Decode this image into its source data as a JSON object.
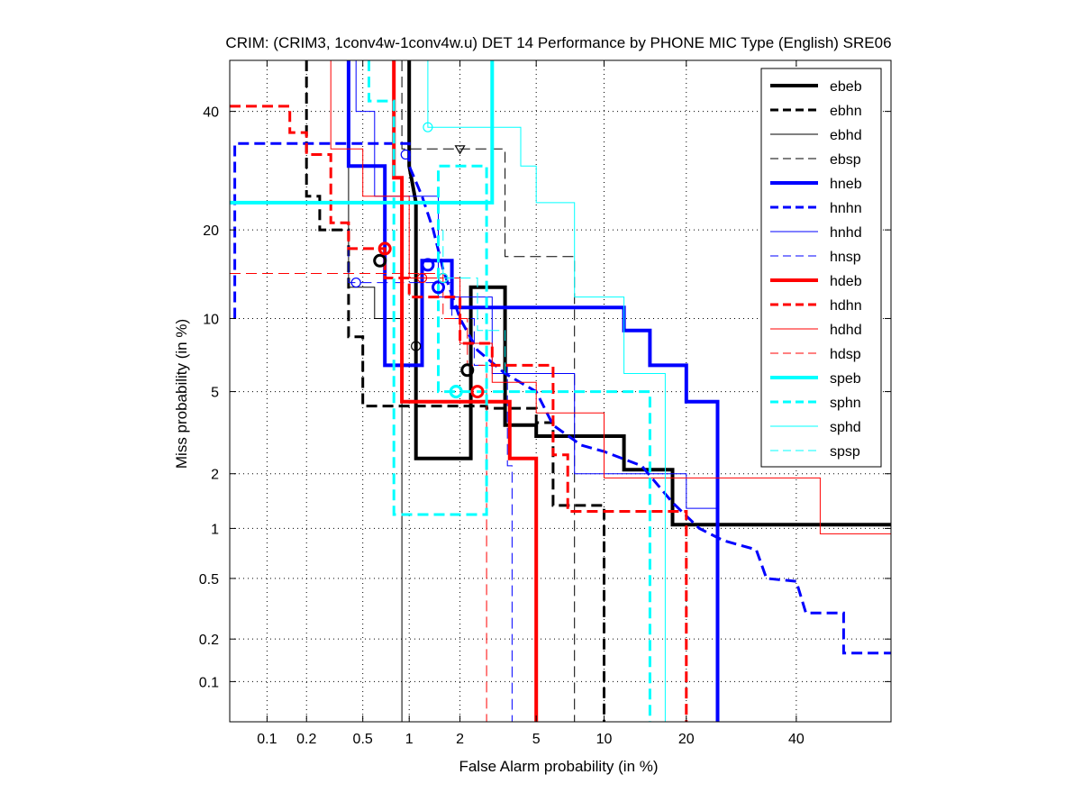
{
  "chart_data": {
    "type": "line",
    "title": "CRIM: (CRIM3, 1conv4w-1conv4w.u) DET 14 Performance by PHONE MIC Type (English) SRE06",
    "xlabel": "False Alarm probability (in %)",
    "ylabel": "Miss probability (in %)",
    "x_scale": "normal-deviate",
    "y_scale": "normal-deviate",
    "xlim": [
      0.05,
      60
    ],
    "ylim": [
      0.05,
      50
    ],
    "x_ticks": [
      0.1,
      0.2,
      0.5,
      1,
      2,
      5,
      10,
      20,
      40
    ],
    "x_tick_labels": [
      "0.1",
      "0.2",
      "0.5",
      "1",
      "2",
      "5",
      "10",
      "20",
      "40"
    ],
    "y_ticks": [
      0.1,
      0.2,
      0.5,
      1,
      2,
      5,
      10,
      20,
      40
    ],
    "y_tick_labels": [
      "0.1",
      "0.2",
      "0.5",
      "1",
      "2",
      "5",
      "10",
      "20",
      "40"
    ],
    "grid": true,
    "legend_position": "top-right",
    "colors": {
      "black": "#000000",
      "blue": "#0000ff",
      "red": "#ff0000",
      "cyan": "#00ffff"
    },
    "series": [
      {
        "name": "ebeb",
        "color": "#000000",
        "width": 4,
        "dash": "solid",
        "marker": "circle",
        "marker_point": [
          2.2,
          6.2
        ],
        "points": [
          [
            1.0,
            50
          ],
          [
            1.0,
            30
          ],
          [
            1.1,
            24
          ],
          [
            1.1,
            2.4
          ],
          [
            2.3,
            2.4
          ],
          [
            2.3,
            13
          ],
          [
            3.5,
            13
          ],
          [
            3.5,
            3.5
          ],
          [
            5,
            3.5
          ],
          [
            5,
            3.1
          ],
          [
            12,
            3.1
          ],
          [
            12,
            2.1
          ],
          [
            18,
            2.1
          ],
          [
            18,
            1.05
          ],
          [
            60,
            1.05
          ]
        ]
      },
      {
        "name": "ebhn",
        "color": "#000000",
        "width": 3,
        "dash": "dash",
        "marker": "circle",
        "marker_point": [
          0.65,
          16
        ],
        "points": [
          [
            0.2,
            50
          ],
          [
            0.2,
            25
          ],
          [
            0.25,
            25
          ],
          [
            0.25,
            20
          ],
          [
            0.4,
            20
          ],
          [
            0.4,
            8.5
          ],
          [
            0.5,
            8.5
          ],
          [
            0.5,
            4.3
          ],
          [
            2.8,
            4.3
          ],
          [
            2.8,
            4.2
          ],
          [
            5,
            4.2
          ],
          [
            5,
            3.6
          ],
          [
            6,
            3.6
          ],
          [
            6,
            1.35
          ],
          [
            10,
            1.35
          ],
          [
            10,
            0.05
          ]
        ]
      },
      {
        "name": "ebhd",
        "color": "#000000",
        "width": 1,
        "dash": "solid",
        "marker": "circle",
        "marker_point": [
          1.1,
          7.8
        ],
        "points": [
          [
            0.4,
            50
          ],
          [
            0.4,
            13
          ],
          [
            0.6,
            13
          ],
          [
            0.6,
            10
          ],
          [
            0.9,
            10
          ],
          [
            0.9,
            0.05
          ]
        ]
      },
      {
        "name": "ebsp",
        "color": "#000000",
        "width": 1,
        "dash": "dash",
        "marker": "triangle",
        "marker_point": [
          2.0,
          33
        ],
        "points": [
          [
            0.9,
            50
          ],
          [
            0.9,
            33
          ],
          [
            3.5,
            33
          ],
          [
            3.5,
            16.5
          ],
          [
            7.5,
            16.5
          ],
          [
            7.5,
            0.05
          ]
        ]
      },
      {
        "name": "hneb",
        "color": "#0000ff",
        "width": 4,
        "dash": "solid",
        "marker": "circle",
        "marker_point": [
          1.3,
          15.5
        ],
        "points": [
          [
            0.4,
            50
          ],
          [
            0.4,
            30
          ],
          [
            0.7,
            30
          ],
          [
            0.7,
            6.5
          ],
          [
            1.2,
            6.5
          ],
          [
            1.2,
            16
          ],
          [
            1.8,
            16
          ],
          [
            1.8,
            11
          ],
          [
            12,
            11
          ],
          [
            12,
            9
          ],
          [
            15,
            9
          ],
          [
            15,
            6.5
          ],
          [
            20,
            6.5
          ],
          [
            20,
            4.5
          ],
          [
            25,
            4.5
          ],
          [
            25,
            0.05
          ]
        ]
      },
      {
        "name": "hnhn",
        "color": "#0000ff",
        "width": 3,
        "dash": "dash",
        "marker": "circle",
        "marker_point": [
          1.5,
          13
        ],
        "points": [
          [
            0.055,
            10
          ],
          [
            0.055,
            34
          ],
          [
            1.0,
            34
          ],
          [
            1.0,
            30
          ],
          [
            1.2,
            25
          ],
          [
            1.4,
            20
          ],
          [
            1.6,
            15
          ],
          [
            2.0,
            10
          ],
          [
            2.5,
            7.5
          ],
          [
            3.5,
            6
          ],
          [
            5,
            5
          ],
          [
            6,
            3.5
          ],
          [
            8,
            2.8
          ],
          [
            10,
            2.6
          ],
          [
            14,
            2.2
          ],
          [
            18,
            1.4
          ],
          [
            22,
            1.0
          ],
          [
            26,
            0.85
          ],
          [
            32,
            0.75
          ],
          [
            34,
            0.5
          ],
          [
            40,
            0.48
          ],
          [
            42,
            0.3
          ],
          [
            50,
            0.3
          ],
          [
            50,
            0.16
          ],
          [
            60,
            0.16
          ]
        ]
      },
      {
        "name": "hnhd",
        "color": "#0000ff",
        "width": 1,
        "dash": "solid",
        "marker": "circle",
        "marker_point": [
          0.95,
          32
        ],
        "points": [
          [
            0.45,
            50
          ],
          [
            0.45,
            40
          ],
          [
            0.6,
            40
          ],
          [
            0.6,
            25
          ],
          [
            1.5,
            25
          ],
          [
            1.5,
            12
          ],
          [
            3.0,
            12
          ],
          [
            3.0,
            6
          ],
          [
            7.5,
            6
          ],
          [
            7.5,
            2.0
          ],
          [
            20,
            2.0
          ],
          [
            20,
            1.3
          ],
          [
            25,
            1.3
          ]
        ]
      },
      {
        "name": "hnsp",
        "color": "#0000ff",
        "width": 1,
        "dash": "dash",
        "marker": "circle",
        "marker_point": [
          0.45,
          13.5
        ],
        "points": [
          [
            0.4,
            20
          ],
          [
            0.4,
            13.5
          ],
          [
            1.8,
            13.5
          ],
          [
            1.8,
            10
          ],
          [
            2.4,
            10
          ],
          [
            2.4,
            6.5
          ],
          [
            3.6,
            6.5
          ],
          [
            3.6,
            2.2
          ],
          [
            3.8,
            2.2
          ],
          [
            3.8,
            0.05
          ]
        ]
      },
      {
        "name": "hdeb",
        "color": "#ff0000",
        "width": 4,
        "dash": "solid",
        "marker": "circle",
        "marker_point": [
          2.5,
          5.0
        ],
        "points": [
          [
            0.8,
            50
          ],
          [
            0.8,
            28
          ],
          [
            0.9,
            28
          ],
          [
            0.9,
            4.5
          ],
          [
            3.7,
            4.5
          ],
          [
            3.7,
            2.4
          ],
          [
            5,
            2.4
          ],
          [
            5,
            0.05
          ]
        ]
      },
      {
        "name": "hdhn",
        "color": "#ff0000",
        "width": 3,
        "dash": "dash",
        "marker": "circle",
        "marker_point": [
          0.7,
          17.5
        ],
        "points": [
          [
            0.05,
            41
          ],
          [
            0.15,
            41
          ],
          [
            0.15,
            36
          ],
          [
            0.2,
            36
          ],
          [
            0.2,
            32
          ],
          [
            0.3,
            32
          ],
          [
            0.3,
            21
          ],
          [
            0.4,
            21
          ],
          [
            0.4,
            17.5
          ],
          [
            0.7,
            17.5
          ],
          [
            0.7,
            14
          ],
          [
            1.0,
            14
          ],
          [
            1.0,
            12
          ],
          [
            2.0,
            12
          ],
          [
            2.0,
            8
          ],
          [
            3.0,
            8
          ],
          [
            3.0,
            6.5
          ],
          [
            6,
            6.5
          ],
          [
            6,
            2.5
          ],
          [
            7,
            2.5
          ],
          [
            7,
            1.25
          ],
          [
            20,
            1.25
          ],
          [
            20,
            0.05
          ]
        ]
      },
      {
        "name": "hdhd",
        "color": "#ff0000",
        "width": 1,
        "dash": "solid",
        "marker": "circle",
        "marker_point": [
          1.2,
          14
        ],
        "points": [
          [
            0.3,
            50
          ],
          [
            0.3,
            33
          ],
          [
            0.5,
            33
          ],
          [
            0.5,
            25
          ],
          [
            1.0,
            25
          ],
          [
            1.0,
            14
          ],
          [
            2.0,
            14
          ],
          [
            2.0,
            8
          ],
          [
            3.0,
            8
          ],
          [
            3.0,
            5.5
          ],
          [
            5,
            5.5
          ],
          [
            5,
            4
          ],
          [
            10,
            4
          ],
          [
            10,
            1.9
          ],
          [
            45,
            1.9
          ],
          [
            45,
            0.93
          ],
          [
            60,
            0.93
          ]
        ]
      },
      {
        "name": "hdsp",
        "color": "#ff0000",
        "width": 1,
        "dash": "dash",
        "marker": "circle",
        "marker_point": [
          1.6,
          14
        ],
        "points": [
          [
            0.05,
            14.5
          ],
          [
            1.6,
            14.5
          ],
          [
            1.6,
            10
          ],
          [
            2.2,
            10
          ],
          [
            2.2,
            6.5
          ],
          [
            2.8,
            6.5
          ],
          [
            2.8,
            0.05
          ]
        ]
      },
      {
        "name": "speb",
        "color": "#00ffff",
        "width": 4,
        "dash": "solid",
        "marker": "circle",
        "marker_point": [
          1.9,
          5.0
        ],
        "points": [
          [
            0.05,
            24
          ],
          [
            3.0,
            24
          ],
          [
            3.0,
            50
          ]
        ]
      },
      {
        "name": "sphn",
        "color": "#00ffff",
        "width": 3,
        "dash": "dash",
        "marker": "circle",
        "marker_point": [
          1.9,
          5.0
        ],
        "points": [
          [
            0.55,
            50
          ],
          [
            0.55,
            42
          ],
          [
            0.8,
            42
          ],
          [
            0.8,
            1.2
          ],
          [
            2.8,
            1.2
          ],
          [
            2.8,
            30
          ],
          [
            1.5,
            30
          ],
          [
            1.5,
            5.0
          ],
          [
            15,
            5.0
          ],
          [
            15,
            0.05
          ]
        ]
      },
      {
        "name": "sphd",
        "color": "#00ffff",
        "width": 1,
        "dash": "solid",
        "marker": "circle",
        "marker_point": [
          1.3,
          37
        ],
        "points": [
          [
            1.3,
            50
          ],
          [
            1.3,
            37
          ],
          [
            4.2,
            37
          ],
          [
            4.2,
            30
          ],
          [
            5,
            30
          ],
          [
            5,
            24
          ],
          [
            7.5,
            24
          ],
          [
            7.5,
            12
          ],
          [
            12,
            12
          ],
          [
            12,
            6
          ],
          [
            17,
            6
          ],
          [
            17,
            0.05
          ]
        ]
      },
      {
        "name": "spsp",
        "color": "#00ffff",
        "width": 1,
        "dash": "dash",
        "marker": "circle",
        "marker_point": [
          1.6,
          14
        ],
        "points": [
          [
            1.6,
            20
          ],
          [
            1.6,
            14
          ],
          [
            2.5,
            14
          ],
          [
            2.5,
            9
          ],
          [
            3.5,
            9
          ],
          [
            3.5,
            6
          ]
        ]
      }
    ]
  }
}
